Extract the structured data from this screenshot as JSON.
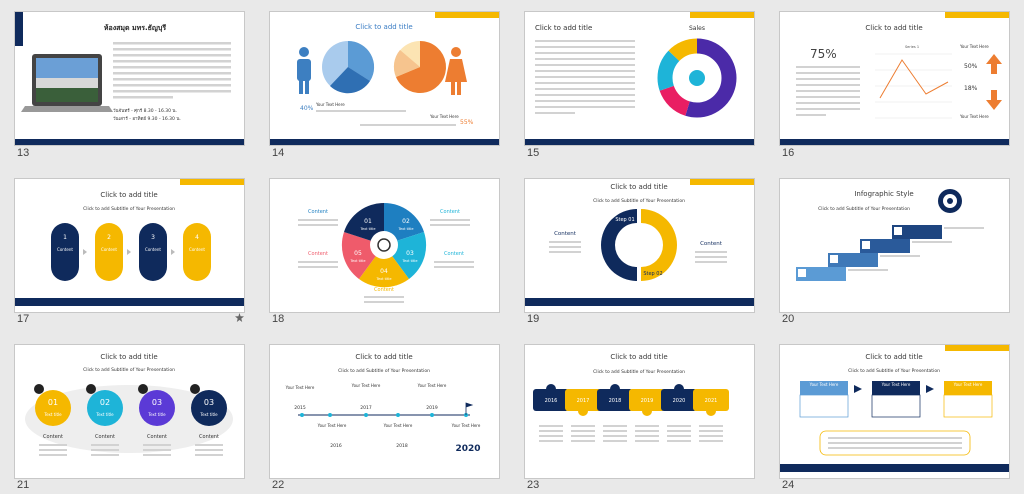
{
  "slides": [
    {
      "number": "13",
      "title": "ห้องสมุด มทร.ธัญบุรี",
      "lines": [
        "วันจันทร์ - ศุกร์ 8.30 - 16.30 น.",
        "วันเสาร์ - อาทิตย์ 9.30 - 16.30 น."
      ]
    },
    {
      "number": "14",
      "title": "Click to add title",
      "percents": [
        "40%",
        "55%"
      ],
      "texts": [
        "Your Text Here",
        "Your Text Here"
      ]
    },
    {
      "number": "15",
      "title": "Click to add title",
      "chart_title": "Sales"
    },
    {
      "number": "16",
      "title": "Click to add title",
      "big": "75%",
      "percents": [
        "50%",
        "18%"
      ],
      "texts": [
        "Your Text Here",
        "Your Text Here"
      ],
      "chart_title": "Series 1"
    },
    {
      "number": "17",
      "title": "Click to add title",
      "subtitle": "Click to add Subtitle of Your Presentation",
      "steps": [
        "1",
        "2",
        "3",
        "4"
      ],
      "label": "Content"
    },
    {
      "number": "18",
      "steps": [
        "01",
        "02",
        "03",
        "04",
        "05"
      ],
      "step_label": "Text title",
      "label": "Content"
    },
    {
      "number": "19",
      "title": "Click to add title",
      "subtitle": "Click to add Subtitle of Your Presentation",
      "steps": [
        "Step 01",
        "Step 02"
      ],
      "label": "Content"
    },
    {
      "number": "20",
      "title": "Infographic Style",
      "subtitle": "Click to add Subtitle of Your Presentation"
    },
    {
      "number": "21",
      "title": "Click to add title",
      "subtitle": "Click to add Subtitle of Your Presentation",
      "steps": [
        "01",
        "02",
        "03",
        "03"
      ],
      "step_label": "Text title",
      "label": "Content"
    },
    {
      "number": "22",
      "title": "Click to add title",
      "subtitle": "Click to add Subtitle of Your Presentation",
      "years": [
        "2015",
        "2016",
        "2017",
        "2018",
        "2019",
        "2020"
      ],
      "label": "Your Text Here"
    },
    {
      "number": "23",
      "title": "Click to add title",
      "subtitle": "Click to add Subtitle of Your Presentation",
      "years": [
        "2016",
        "2017",
        "2018",
        "2019",
        "2020",
        "2021"
      ]
    },
    {
      "number": "24",
      "title": "Click to add title",
      "subtitle": "Click to add Subtitle of Your Presentation",
      "label": "Your Text Here"
    }
  ]
}
